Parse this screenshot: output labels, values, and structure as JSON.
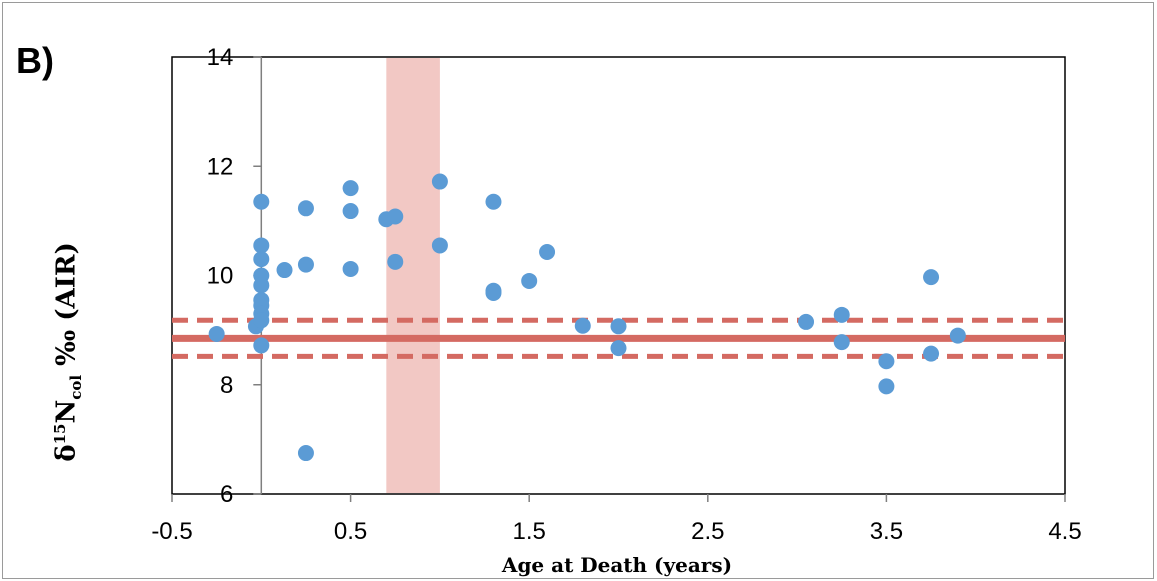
{
  "panel_label": "B)",
  "chart_data": {
    "type": "scatter",
    "xlabel": "Age at Death (years)",
    "ylabel": {
      "delta": "δ",
      "mass": "15",
      "element": "N",
      "subscript": "col",
      "unit": "‰ (AIR)"
    },
    "xlim": [
      -0.5,
      4.5
    ],
    "ylim": [
      6,
      14
    ],
    "xticks": [
      "-0.5",
      "0.5",
      "1.5",
      "2.5",
      "3.5",
      "4.5"
    ],
    "xtick_values": [
      -0.5,
      0.5,
      1.5,
      2.5,
      3.5,
      4.5
    ],
    "yticks": [
      "6",
      "8",
      "10",
      "12",
      "14"
    ],
    "ytick_values": [
      6,
      8,
      10,
      12,
      14
    ],
    "grid": false,
    "colors": {
      "points": "#5B9BD5",
      "mean_line": "#D46A62",
      "shade": "#F2C8C4",
      "axis": "#7f7f7f"
    },
    "shaded_band_x": [
      0.7,
      1.0
    ],
    "mean_line_y": 8.85,
    "band_lines_y": [
      9.18,
      8.52
    ],
    "points": [
      {
        "x": -0.25,
        "y": 8.93
      },
      {
        "x": -0.03,
        "y": 9.07
      },
      {
        "x": 0.0,
        "y": 11.35
      },
      {
        "x": 0.0,
        "y": 10.55
      },
      {
        "x": 0.0,
        "y": 10.3
      },
      {
        "x": 0.0,
        "y": 10.0
      },
      {
        "x": 0.0,
        "y": 9.82
      },
      {
        "x": 0.0,
        "y": 9.55
      },
      {
        "x": 0.0,
        "y": 9.45
      },
      {
        "x": 0.0,
        "y": 9.3
      },
      {
        "x": 0.0,
        "y": 9.18
      },
      {
        "x": 0.0,
        "y": 8.72
      },
      {
        "x": 0.13,
        "y": 10.1
      },
      {
        "x": 0.25,
        "y": 11.23
      },
      {
        "x": 0.25,
        "y": 10.2
      },
      {
        "x": 0.25,
        "y": 6.75
      },
      {
        "x": 0.5,
        "y": 11.6
      },
      {
        "x": 0.5,
        "y": 11.18
      },
      {
        "x": 0.5,
        "y": 10.12
      },
      {
        "x": 0.7,
        "y": 11.03
      },
      {
        "x": 0.75,
        "y": 11.08
      },
      {
        "x": 0.75,
        "y": 10.25
      },
      {
        "x": 1.0,
        "y": 11.72
      },
      {
        "x": 1.0,
        "y": 10.55
      },
      {
        "x": 1.3,
        "y": 11.35
      },
      {
        "x": 1.3,
        "y": 9.72
      },
      {
        "x": 1.3,
        "y": 9.68
      },
      {
        "x": 1.5,
        "y": 9.9
      },
      {
        "x": 1.6,
        "y": 10.43
      },
      {
        "x": 1.8,
        "y": 9.08
      },
      {
        "x": 2.0,
        "y": 9.07
      },
      {
        "x": 2.0,
        "y": 8.67
      },
      {
        "x": 3.05,
        "y": 9.15
      },
      {
        "x": 3.25,
        "y": 9.28
      },
      {
        "x": 3.25,
        "y": 8.78
      },
      {
        "x": 3.5,
        "y": 8.43
      },
      {
        "x": 3.5,
        "y": 7.97
      },
      {
        "x": 3.75,
        "y": 9.97
      },
      {
        "x": 3.75,
        "y": 8.57
      },
      {
        "x": 3.9,
        "y": 8.9
      }
    ]
  }
}
